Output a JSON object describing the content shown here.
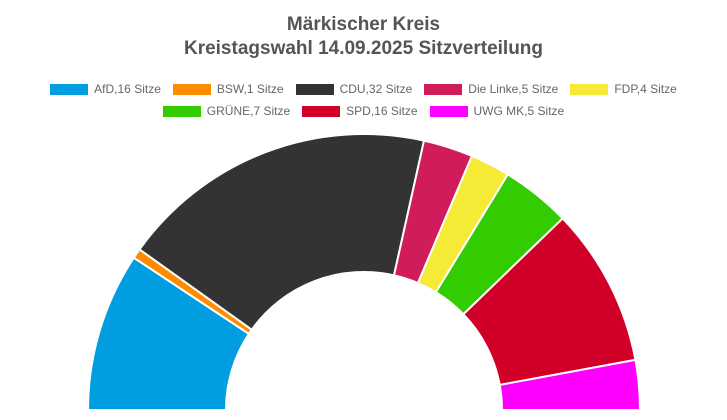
{
  "chart_data": {
    "type": "pie",
    "subtype": "semicircle-parliament",
    "title_line1": "Märkischer Kreis",
    "title_line2": "Kreistagswahl 14.09.2025 Sitzverteilung",
    "legend_placement": "top",
    "grid": false,
    "series": [
      {
        "name": "AfD",
        "value": 16,
        "legend_label": "AfD,16 Sitze",
        "color": "#009ee0"
      },
      {
        "name": "BSW",
        "value": 1,
        "legend_label": "BSW,1 Sitze",
        "color": "#ff8c00"
      },
      {
        "name": "CDU",
        "value": 32,
        "legend_label": "CDU,32 Sitze",
        "color": "#333333"
      },
      {
        "name": "Die Linke",
        "value": 5,
        "legend_label": "Die Linke,5 Sitze",
        "color": "#d01c5a"
      },
      {
        "name": "FDP",
        "value": 4,
        "legend_label": "FDP,4 Sitze",
        "color": "#f5ea36"
      },
      {
        "name": "GRÜNE",
        "value": 7,
        "legend_label": "GRÜNE,7 Sitze",
        "color": "#33cc00"
      },
      {
        "name": "SPD",
        "value": 16,
        "legend_label": "SPD,16 Sitze",
        "color": "#d00028"
      },
      {
        "name": "UWG MK",
        "value": 5,
        "legend_label": "UWG MK,5 Sitze",
        "color": "#ff00ff"
      }
    ]
  }
}
